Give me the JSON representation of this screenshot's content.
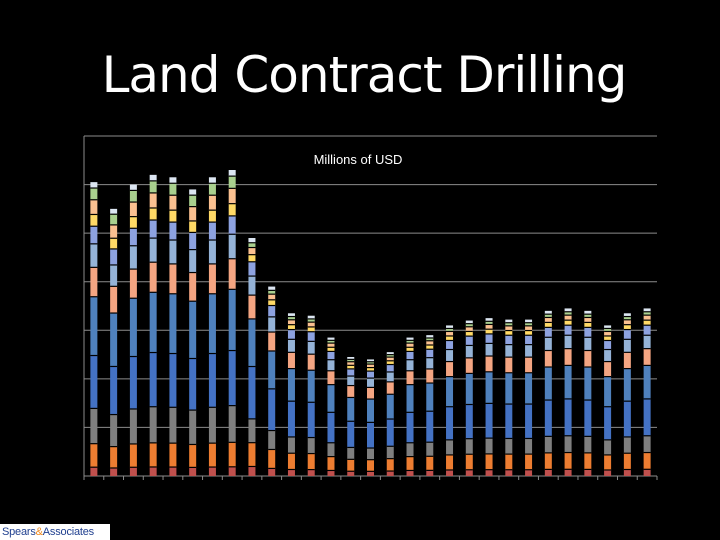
{
  "slide": {
    "title": "Land Contract Drilling"
  },
  "logo": {
    "name": "Spears",
    "amp": "&",
    "suffix": "Associates"
  },
  "colors": {
    "gridline": "#8c8c8c",
    "segments": [
      "#c0504d",
      "#ed7d31",
      "#7f7f7f",
      "#4472c4",
      "#4f81bd",
      "#f4a582",
      "#95b3d7",
      "#8da2e0",
      "#ffd966",
      "#fac090",
      "#a9d08e",
      "#dce6f2"
    ]
  },
  "chart_data": {
    "type": "bar",
    "stacked": true,
    "title": "Millions of USD",
    "grid": true,
    "legend": "none",
    "y_tick_labels": "none",
    "x_tick_labels": "none",
    "ylim": [
      0,
      700
    ],
    "gridline_values": [
      100,
      200,
      300,
      400,
      500,
      600,
      700
    ],
    "totals": [
      605,
      550,
      600,
      620,
      615,
      590,
      615,
      630,
      490,
      390,
      335,
      330,
      285,
      245,
      240,
      255,
      285,
      290,
      310,
      320,
      325,
      322,
      322,
      340,
      345,
      340,
      310,
      335,
      345
    ]
  }
}
